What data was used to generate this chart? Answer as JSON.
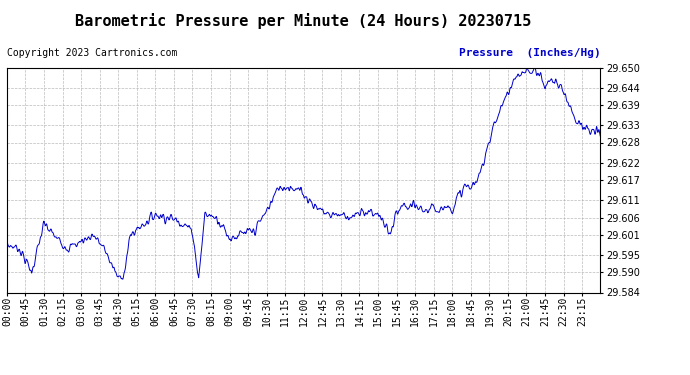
{
  "title": "Barometric Pressure per Minute (24 Hours) 20230715",
  "copyright_text": "Copyright 2023 Cartronics.com",
  "legend_label": "Pressure  (Inches/Hg)",
  "ylim": [
    29.584,
    29.65
  ],
  "yticks": [
    29.584,
    29.59,
    29.595,
    29.601,
    29.606,
    29.611,
    29.617,
    29.622,
    29.628,
    29.633,
    29.639,
    29.644,
    29.65
  ],
  "line_color": "#0000cc",
  "grid_color": "#aaaaaa",
  "bg_color": "#ffffff",
  "title_fontsize": 11,
  "tick_fontsize": 7,
  "copyright_fontsize": 7,
  "legend_fontsize": 8,
  "xtick_labels": [
    "00:00",
    "00:45",
    "01:30",
    "02:15",
    "03:00",
    "03:45",
    "04:30",
    "05:15",
    "06:00",
    "06:45",
    "07:30",
    "08:15",
    "09:00",
    "09:45",
    "10:30",
    "11:15",
    "12:00",
    "12:45",
    "13:30",
    "14:15",
    "15:00",
    "15:45",
    "16:30",
    "17:15",
    "18:00",
    "18:45",
    "19:30",
    "20:15",
    "21:00",
    "21:45",
    "22:30",
    "23:15"
  ],
  "num_minutes": 1440,
  "key_points": {
    "0": 29.598,
    "30": 29.597,
    "60": 29.59,
    "90": 29.604,
    "120": 29.6,
    "150": 29.597,
    "180": 29.599,
    "210": 29.601,
    "240": 29.596,
    "270": 29.588,
    "285": 29.59,
    "300": 29.601,
    "330": 29.604,
    "360": 29.607,
    "390": 29.606,
    "420": 29.605,
    "450": 29.602,
    "465": 29.588,
    "480": 29.607,
    "510": 29.606,
    "540": 29.6,
    "570": 29.601,
    "600": 29.602,
    "630": 29.608,
    "660": 29.615,
    "690": 29.615,
    "720": 29.613,
    "750": 29.609,
    "780": 29.607,
    "810": 29.607,
    "840": 29.606,
    "870": 29.608,
    "900": 29.607,
    "930": 29.601,
    "945": 29.607,
    "960": 29.609,
    "990": 29.609,
    "1020": 29.608,
    "1050": 29.609,
    "1080": 29.609,
    "1110": 29.615,
    "1125": 29.615,
    "1140": 29.616,
    "1170": 29.629,
    "1200": 29.639,
    "1230": 29.646,
    "1260": 29.649,
    "1290": 29.649,
    "1305": 29.644,
    "1320": 29.647,
    "1350": 29.643,
    "1380": 29.635,
    "1410": 29.631,
    "1439": 29.631
  }
}
